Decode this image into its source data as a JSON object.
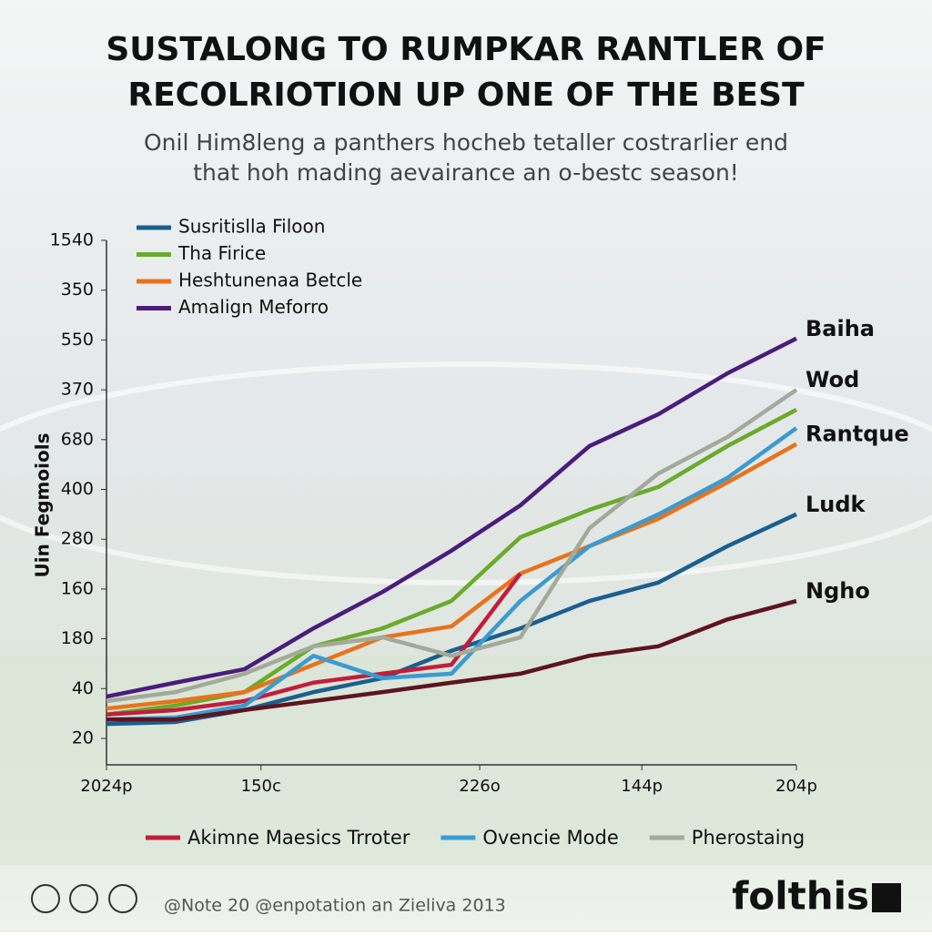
{
  "chart_data": {
    "type": "line",
    "title": [
      "SUSTALONG TO RUMPKAR RANTLER OF",
      "RECOLRIOTION UP ONE OF THE BEST"
    ],
    "subtitle": [
      "Onil Him8leng a panthers hocheb tetaller costrarlier end",
      "that hoh mading aevairance an o-bestc season!"
    ],
    "y_label": "Uin Fegmoiols",
    "x": [
      0,
      10,
      20,
      30,
      40,
      50,
      60,
      70,
      80,
      90,
      100
    ],
    "xlim": [
      0,
      100
    ],
    "xticks": [
      {
        "value": 0,
        "label": "2024p"
      },
      {
        "value": 22.4,
        "label": "150c"
      },
      {
        "value": 54.1,
        "label": "226o"
      },
      {
        "value": 77.6,
        "label": "144p"
      },
      {
        "value": 100,
        "label": "204p"
      }
    ],
    "ylim": [
      0.47,
      11
    ],
    "yticks": [
      {
        "value": 1,
        "label": "20"
      },
      {
        "value": 2,
        "label": "40"
      },
      {
        "value": 3,
        "label": "180"
      },
      {
        "value": 4,
        "label": "160"
      },
      {
        "value": 5,
        "label": "280"
      },
      {
        "value": 6,
        "label": "400"
      },
      {
        "value": 7,
        "label": "680"
      },
      {
        "value": 8,
        "label": "370"
      },
      {
        "value": 9,
        "label": "550"
      },
      {
        "value": 10,
        "label": "350"
      },
      {
        "value": 11,
        "label": "1540"
      }
    ],
    "series": [
      {
        "name": "Susritislla Filoon",
        "color": "#1b5f8f",
        "end_label": "Ludk",
        "values": [
          1.29,
          1.33,
          1.57,
          1.93,
          2.21,
          2.76,
          3.21,
          3.76,
          4.13,
          4.86,
          5.5
        ]
      },
      {
        "name": "Tha Firice",
        "color": "#6aab2b",
        "values": [
          1.48,
          1.66,
          1.93,
          2.85,
          3.21,
          3.76,
          5.04,
          5.59,
          6.05,
          6.87,
          7.6
        ]
      },
      {
        "name": "Heshtunenaa Betcle",
        "color": "#e8731c",
        "end_label": "Rantque",
        "values": [
          1.6,
          1.75,
          1.93,
          2.48,
          3.03,
          3.25,
          4.31,
          4.86,
          5.41,
          6.14,
          6.91
        ]
      },
      {
        "name": "Amalign Meforro",
        "color": "#4b1c7c",
        "end_label": "Baiha",
        "values": [
          1.84,
          2.12,
          2.39,
          3.21,
          3.94,
          4.77,
          5.68,
          6.87,
          7.51,
          8.33,
          9.03
        ]
      },
      {
        "name": "Akimne Maesics Trroter",
        "color": "#c41c3c",
        "values": [
          1.48,
          1.57,
          1.75,
          2.12,
          2.3,
          2.48,
          4.31,
          null,
          null,
          null,
          null
        ]
      },
      {
        "name": "Ovencie Mode",
        "color": "#3a9bd2",
        "values": [
          1.38,
          1.42,
          1.66,
          2.66,
          2.21,
          2.3,
          3.76,
          4.86,
          5.5,
          6.23,
          7.23
        ]
      },
      {
        "name": "Pherostaing",
        "color": "#a3aa9a",
        "end_label": "Wod",
        "values": [
          1.75,
          1.93,
          2.3,
          2.85,
          3.03,
          2.66,
          3.03,
          5.22,
          6.32,
          7.05,
          8.0
        ]
      },
      {
        "color": "#5e1420",
        "end_label": "Ngho",
        "values": [
          1.38,
          1.38,
          1.57,
          1.75,
          1.93,
          2.12,
          2.3,
          2.66,
          2.85,
          3.39,
          3.76
        ]
      }
    ],
    "footer": "@Note 20 @enpotation an Zieliva 2013",
    "brand": "folthis"
  }
}
